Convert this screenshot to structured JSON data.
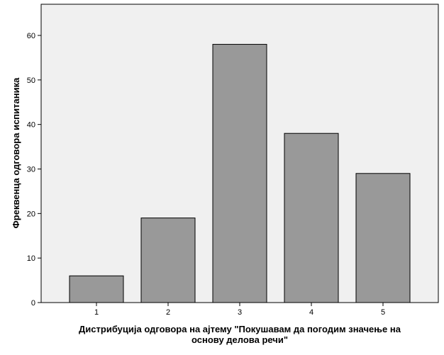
{
  "chart_data": {
    "type": "bar",
    "categories": [
      "1",
      "2",
      "3",
      "4",
      "5"
    ],
    "values": [
      6,
      19,
      58,
      38,
      29
    ],
    "xlabel_lines": [
      "Дистрибуција одговора на ајтему \"Покушавам да погодим значење на",
      "основу делова речи\""
    ],
    "ylabel": "Фреквенца одговора испитаника",
    "ylim": [
      0,
      67
    ],
    "yticks": [
      0,
      10,
      20,
      30,
      40,
      50,
      60
    ],
    "grid": false,
    "colors": {
      "bar_fill": "#999999",
      "bar_stroke": "#000000",
      "plot_background": "#f0f0f0",
      "axis": "#000000"
    }
  }
}
